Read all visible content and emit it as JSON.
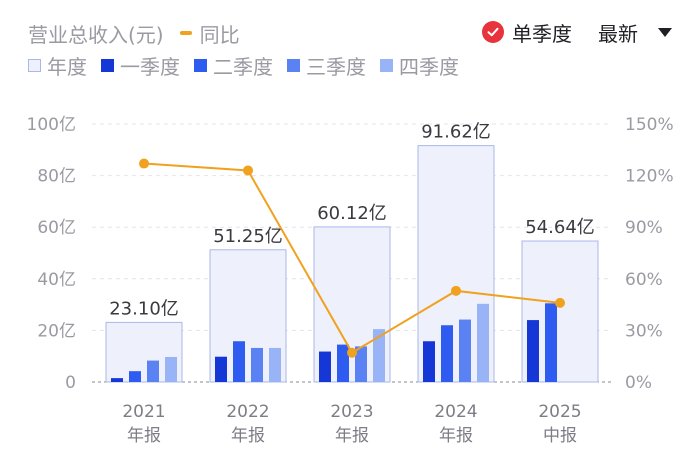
{
  "header": {
    "left_legend": {
      "revenue_label": "营业总收入(元)",
      "yoy_label": "同比"
    },
    "series_legend": [
      "年度",
      "一季度",
      "二季度",
      "三季度",
      "四季度"
    ],
    "season_toggle_label": "单季度",
    "latest_label": "最新"
  },
  "colors": {
    "annual_fill": "#eef0fb",
    "annual_border": "#aab8e8",
    "q1": "#1437d6",
    "q2": "#2f5cf0",
    "q3": "#5a82f2",
    "q4": "#98b4f6",
    "yoy_line": "#f0a11e",
    "accent_red": "#e8323c"
  },
  "chart_data": {
    "type": "bar",
    "categories": [
      "2021\n年报",
      "2022\n年报",
      "2023\n年报",
      "2024\n年报",
      "2025\n中报"
    ],
    "annual": {
      "name": "年度",
      "values": [
        23.1,
        51.25,
        60.12,
        91.62,
        54.64
      ],
      "labels": [
        "23.10亿",
        "51.25亿",
        "60.12亿",
        "91.62亿",
        "54.64亿"
      ]
    },
    "series": [
      {
        "name": "一季度",
        "values": [
          1.5,
          9.8,
          11.8,
          15.8,
          24.0
        ]
      },
      {
        "name": "二季度",
        "values": [
          4.2,
          15.8,
          14.5,
          22.0,
          30.5
        ]
      },
      {
        "name": "三季度",
        "values": [
          8.3,
          13.2,
          13.8,
          24.2,
          null
        ]
      },
      {
        "name": "四季度",
        "values": [
          9.7,
          13.2,
          20.5,
          30.3,
          null
        ]
      }
    ],
    "yoy": {
      "name": "同比",
      "values": [
        127,
        123,
        17,
        53,
        46
      ]
    },
    "y_left": {
      "min": 0,
      "max": 100,
      "ticks": [
        "0",
        "20亿",
        "40亿",
        "60亿",
        "80亿",
        "100亿"
      ]
    },
    "y_right": {
      "min": 0,
      "max": 150,
      "ticks": [
        "0%",
        "30%",
        "60%",
        "90%",
        "120%",
        "150%"
      ]
    },
    "grid": true
  }
}
